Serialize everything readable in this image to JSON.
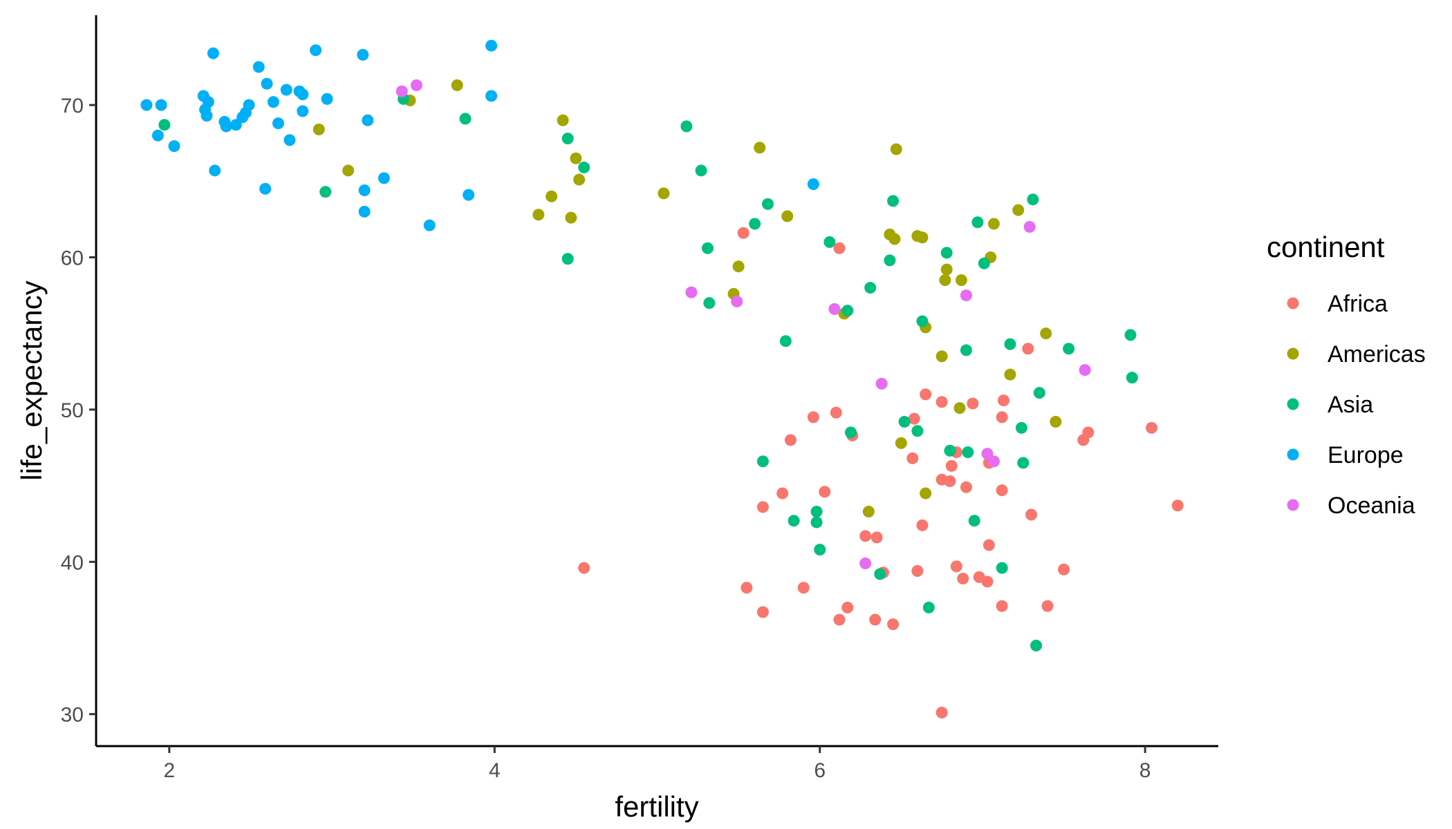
{
  "chart_data": {
    "type": "scatter",
    "xlabel": "fertility",
    "ylabel": "life_expectancy",
    "xlim": [
      1.55,
      8.45
    ],
    "ylim": [
      27.9,
      75.9
    ],
    "xticks": [
      2,
      4,
      6,
      8
    ],
    "yticks": [
      30,
      40,
      50,
      60,
      70
    ],
    "grid": false,
    "legend": {
      "title": "continent",
      "placement": "right"
    },
    "series": [
      {
        "name": "Africa",
        "color": "#F8766D",
        "points": [
          [
            4.55,
            39.6
          ],
          [
            5.53,
            61.6
          ],
          [
            6.12,
            60.6
          ],
          [
            5.55,
            38.3
          ],
          [
            5.65,
            36.7
          ],
          [
            5.9,
            38.3
          ],
          [
            6.12,
            36.2
          ],
          [
            6.17,
            37.0
          ],
          [
            6.34,
            36.2
          ],
          [
            6.45,
            35.9
          ],
          [
            6.28,
            41.7
          ],
          [
            6.35,
            41.6
          ],
          [
            6.6,
            39.4
          ],
          [
            6.63,
            42.4
          ],
          [
            6.39,
            39.3
          ],
          [
            6.84,
            39.7
          ],
          [
            6.88,
            38.9
          ],
          [
            6.98,
            39.0
          ],
          [
            7.03,
            38.7
          ],
          [
            7.04,
            41.1
          ],
          [
            7.12,
            37.1
          ],
          [
            7.3,
            43.1
          ],
          [
            7.4,
            37.1
          ],
          [
            7.5,
            39.5
          ],
          [
            6.75,
            30.1
          ],
          [
            5.65,
            43.6
          ],
          [
            5.77,
            44.5
          ],
          [
            6.03,
            44.6
          ],
          [
            5.82,
            48.0
          ],
          [
            5.96,
            49.5
          ],
          [
            6.1,
            49.8
          ],
          [
            6.2,
            48.3
          ],
          [
            6.57,
            46.8
          ],
          [
            6.58,
            49.4
          ],
          [
            6.65,
            51.0
          ],
          [
            6.75,
            50.5
          ],
          [
            6.94,
            50.4
          ],
          [
            6.75,
            45.4
          ],
          [
            6.8,
            45.3
          ],
          [
            6.81,
            46.3
          ],
          [
            6.84,
            47.2
          ],
          [
            6.9,
            44.9
          ],
          [
            7.04,
            46.5
          ],
          [
            7.12,
            44.7
          ],
          [
            7.12,
            49.5
          ],
          [
            7.13,
            50.6
          ],
          [
            7.28,
            54.0
          ],
          [
            7.62,
            48.0
          ],
          [
            7.65,
            48.5
          ],
          [
            8.04,
            48.8
          ],
          [
            8.2,
            43.7
          ]
        ]
      },
      {
        "name": "Americas",
        "color": "#A3A500",
        "points": [
          [
            2.92,
            68.4
          ],
          [
            3.1,
            65.7
          ],
          [
            3.48,
            70.3
          ],
          [
            3.77,
            71.3
          ],
          [
            4.27,
            62.8
          ],
          [
            4.35,
            64.0
          ],
          [
            4.42,
            69.0
          ],
          [
            4.47,
            62.6
          ],
          [
            4.5,
            66.5
          ],
          [
            4.52,
            65.1
          ],
          [
            5.04,
            64.2
          ],
          [
            5.47,
            57.6
          ],
          [
            5.5,
            59.4
          ],
          [
            5.63,
            67.2
          ],
          [
            5.8,
            62.7
          ],
          [
            6.15,
            56.3
          ],
          [
            6.3,
            43.3
          ],
          [
            6.43,
            61.5
          ],
          [
            6.46,
            61.2
          ],
          [
            6.47,
            67.1
          ],
          [
            6.5,
            47.8
          ],
          [
            6.6,
            61.4
          ],
          [
            6.63,
            61.3
          ],
          [
            6.65,
            44.5
          ],
          [
            6.65,
            55.4
          ],
          [
            6.75,
            53.5
          ],
          [
            6.77,
            58.5
          ],
          [
            6.78,
            59.2
          ],
          [
            6.87,
            58.5
          ],
          [
            6.86,
            50.1
          ],
          [
            7.05,
            60.0
          ],
          [
            7.07,
            62.2
          ],
          [
            7.17,
            52.3
          ],
          [
            7.22,
            63.1
          ],
          [
            7.39,
            55.0
          ],
          [
            7.45,
            49.2
          ]
        ]
      },
      {
        "name": "Asia",
        "color": "#00BF7D",
        "points": [
          [
            1.97,
            68.7
          ],
          [
            2.96,
            64.3
          ],
          [
            3.44,
            70.4
          ],
          [
            3.82,
            69.1
          ],
          [
            4.45,
            67.8
          ],
          [
            4.45,
            59.9
          ],
          [
            4.55,
            65.9
          ],
          [
            5.18,
            68.6
          ],
          [
            5.27,
            65.7
          ],
          [
            5.31,
            60.6
          ],
          [
            5.32,
            57.0
          ],
          [
            5.6,
            62.2
          ],
          [
            5.68,
            63.5
          ],
          [
            5.79,
            54.5
          ],
          [
            5.65,
            46.6
          ],
          [
            5.84,
            42.7
          ],
          [
            5.98,
            42.6
          ],
          [
            5.98,
            43.3
          ],
          [
            6.0,
            40.8
          ],
          [
            6.06,
            61.0
          ],
          [
            6.17,
            56.5
          ],
          [
            6.19,
            48.5
          ],
          [
            6.31,
            58.0
          ],
          [
            6.37,
            39.2
          ],
          [
            6.43,
            59.8
          ],
          [
            6.45,
            63.7
          ],
          [
            6.52,
            49.2
          ],
          [
            6.6,
            48.6
          ],
          [
            6.63,
            55.8
          ],
          [
            6.67,
            37.0
          ],
          [
            6.78,
            60.3
          ],
          [
            6.8,
            47.3
          ],
          [
            6.9,
            53.9
          ],
          [
            6.91,
            47.2
          ],
          [
            6.95,
            42.7
          ],
          [
            6.97,
            62.3
          ],
          [
            7.01,
            59.6
          ],
          [
            7.12,
            39.6
          ],
          [
            7.17,
            54.3
          ],
          [
            7.24,
            48.8
          ],
          [
            7.25,
            46.5
          ],
          [
            7.31,
            63.8
          ],
          [
            7.33,
            34.5
          ],
          [
            7.35,
            51.1
          ],
          [
            7.53,
            54.0
          ],
          [
            7.91,
            54.9
          ],
          [
            7.92,
            52.1
          ]
        ]
      },
      {
        "name": "Europe",
        "color": "#00B0F6",
        "points": [
          [
            1.86,
            70.0
          ],
          [
            1.93,
            68.0
          ],
          [
            1.95,
            70.0
          ],
          [
            2.03,
            67.3
          ],
          [
            2.21,
            70.6
          ],
          [
            2.22,
            69.7
          ],
          [
            2.23,
            69.3
          ],
          [
            2.24,
            70.2
          ],
          [
            2.27,
            73.4
          ],
          [
            2.28,
            65.7
          ],
          [
            2.34,
            68.9
          ],
          [
            2.35,
            68.6
          ],
          [
            2.41,
            68.7
          ],
          [
            2.45,
            69.2
          ],
          [
            2.47,
            69.5
          ],
          [
            2.49,
            70.0
          ],
          [
            2.55,
            72.5
          ],
          [
            2.59,
            64.5
          ],
          [
            2.6,
            71.4
          ],
          [
            2.64,
            70.2
          ],
          [
            2.67,
            68.8
          ],
          [
            2.72,
            71.0
          ],
          [
            2.74,
            67.7
          ],
          [
            2.8,
            70.9
          ],
          [
            2.82,
            69.6
          ],
          [
            2.82,
            70.7
          ],
          [
            2.9,
            73.6
          ],
          [
            2.97,
            70.4
          ],
          [
            3.19,
            73.3
          ],
          [
            3.2,
            63.0
          ],
          [
            3.2,
            64.4
          ],
          [
            3.22,
            69.0
          ],
          [
            3.32,
            65.2
          ],
          [
            3.6,
            62.1
          ],
          [
            3.84,
            64.1
          ],
          [
            3.98,
            73.9
          ],
          [
            3.98,
            70.6
          ],
          [
            5.96,
            64.8
          ]
        ]
      },
      {
        "name": "Oceania",
        "color": "#E76BF3",
        "points": [
          [
            3.43,
            70.9
          ],
          [
            3.52,
            71.3
          ],
          [
            5.21,
            57.7
          ],
          [
            5.49,
            57.1
          ],
          [
            6.09,
            56.6
          ],
          [
            6.38,
            51.7
          ],
          [
            6.28,
            39.9
          ],
          [
            6.9,
            57.5
          ],
          [
            7.03,
            47.1
          ],
          [
            7.07,
            46.6
          ],
          [
            7.29,
            62.0
          ],
          [
            7.63,
            52.6
          ]
        ]
      }
    ]
  }
}
